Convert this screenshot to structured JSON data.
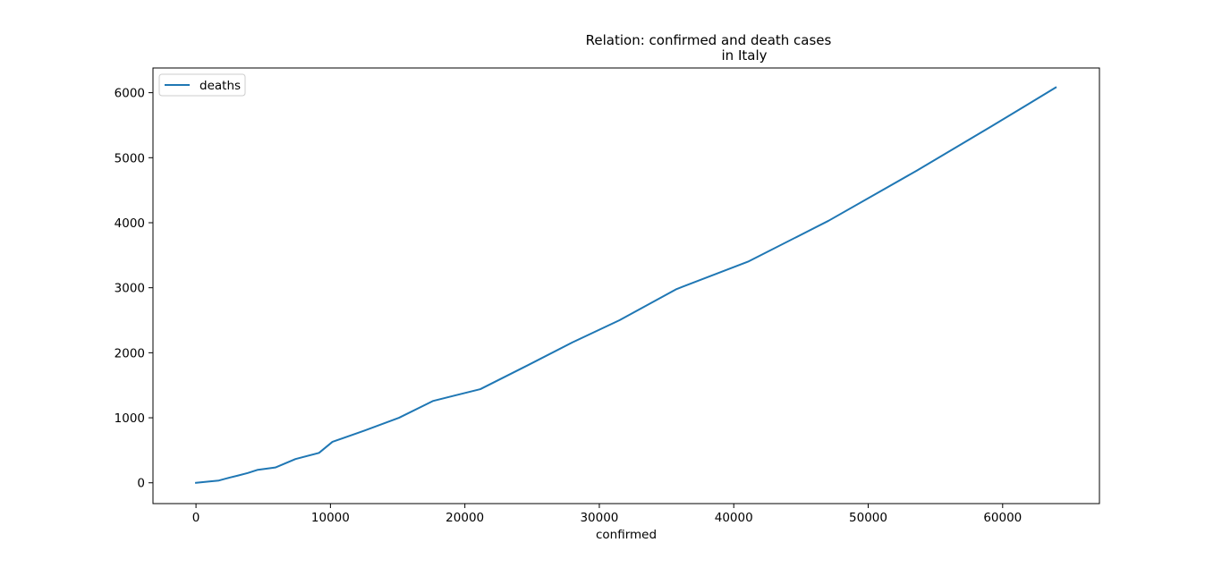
{
  "chart_data": {
    "type": "line",
    "title": "Relation: confirmed and death cases",
    "subtitle": "in Italy",
    "xlabel": "confirmed",
    "ylabel": "",
    "xlim": [
      -3200,
      67200
    ],
    "ylim": [
      -320,
      6380
    ],
    "xticks": [
      0,
      10000,
      20000,
      30000,
      40000,
      50000,
      60000
    ],
    "xtick_labels": [
      "0",
      "10000",
      "20000",
      "30000",
      "40000",
      "50000",
      "60000"
    ],
    "yticks": [
      0,
      1000,
      2000,
      3000,
      4000,
      5000,
      6000
    ],
    "ytick_labels": [
      "0",
      "1000",
      "2000",
      "3000",
      "4000",
      "5000",
      "6000"
    ],
    "grid": false,
    "legend_position": "upper-left",
    "series": [
      {
        "name": "deaths",
        "color": "#1f77b4",
        "x": [
          0,
          1000,
          1700,
          2500,
          3100,
          3850,
          4600,
          5900,
          7400,
          9150,
          10150,
          12500,
          15100,
          17650,
          21150,
          24700,
          28000,
          31500,
          35750,
          41050,
          47050,
          53600,
          59150,
          63950
        ],
        "y": [
          0,
          20,
          35,
          80,
          110,
          150,
          200,
          235,
          365,
          460,
          630,
          800,
          1000,
          1260,
          1440,
          1810,
          2160,
          2500,
          2980,
          3400,
          4030,
          4800,
          5480,
          6080
        ]
      }
    ]
  }
}
